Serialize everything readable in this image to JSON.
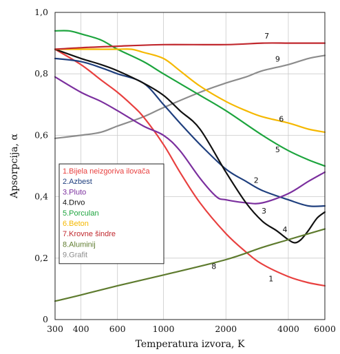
{
  "chart_data": {
    "type": "line",
    "xlabel": "Temperatura izvora, K",
    "ylabel": "Apsorpcija, α",
    "x_scale": "log",
    "xlim": [
      300,
      6000
    ],
    "ylim": [
      0,
      1.0
    ],
    "x_ticks": [
      300,
      400,
      600,
      1000,
      2000,
      4000,
      6000
    ],
    "x_tick_labels": [
      "300",
      "400",
      "600",
      "1000",
      "2000",
      "4000",
      "6000"
    ],
    "y_ticks": [
      0,
      0.2,
      0.4,
      0.6,
      0.8,
      1.0
    ],
    "y_tick_labels": [
      "0",
      "0,2",
      "0,4",
      "0,6",
      "0,8",
      "1,0"
    ],
    "grid": true,
    "legend_position": "center-left",
    "series": [
      {
        "name": "1.Bijela neizgoriva ilovača",
        "label": "1",
        "color": "#e8403f",
        "x": [
          300,
          400,
          500,
          600,
          700,
          800,
          1000,
          1200,
          1500,
          2000,
          2500,
          3000,
          4000,
          5000,
          6000
        ],
        "y": [
          0.88,
          0.83,
          0.78,
          0.74,
          0.7,
          0.66,
          0.57,
          0.48,
          0.38,
          0.28,
          0.22,
          0.18,
          0.14,
          0.12,
          0.11
        ]
      },
      {
        "name": "2.Azbest",
        "label": "2",
        "color": "#1f3f7e",
        "x": [
          300,
          400,
          500,
          600,
          800,
          1000,
          1200,
          1500,
          2000,
          2500,
          3000,
          4000,
          5000,
          6000
        ],
        "y": [
          0.85,
          0.84,
          0.82,
          0.8,
          0.77,
          0.7,
          0.64,
          0.57,
          0.49,
          0.45,
          0.42,
          0.39,
          0.37,
          0.37
        ]
      },
      {
        "name": "3.Pluto",
        "label": "3",
        "color": "#7b2f9e",
        "x": [
          300,
          400,
          500,
          600,
          800,
          1000,
          1200,
          1500,
          1800,
          2000,
          2500,
          3000,
          4000,
          5000,
          6000
        ],
        "y": [
          0.79,
          0.74,
          0.71,
          0.68,
          0.63,
          0.6,
          0.55,
          0.46,
          0.4,
          0.39,
          0.38,
          0.38,
          0.41,
          0.45,
          0.48
        ]
      },
      {
        "name": "4.Drvo",
        "label": "4",
        "color": "#111111",
        "x": [
          300,
          400,
          500,
          600,
          800,
          1000,
          1200,
          1500,
          2000,
          2500,
          3000,
          3500,
          4000,
          4300,
          4600,
          5000,
          5500,
          6000
        ],
        "y": [
          0.88,
          0.85,
          0.83,
          0.81,
          0.77,
          0.73,
          0.68,
          0.62,
          0.48,
          0.38,
          0.32,
          0.29,
          0.26,
          0.25,
          0.26,
          0.29,
          0.33,
          0.35
        ]
      },
      {
        "name": "5.Porculan",
        "label": "5",
        "color": "#1ca43d",
        "x": [
          300,
          350,
          400,
          500,
          600,
          800,
          1000,
          1500,
          2000,
          3000,
          4000,
          5000,
          6000
        ],
        "y": [
          0.94,
          0.94,
          0.93,
          0.91,
          0.88,
          0.84,
          0.8,
          0.73,
          0.68,
          0.6,
          0.55,
          0.52,
          0.5
        ]
      },
      {
        "name": "6.Beton",
        "label": "6",
        "color": "#f5b800",
        "x": [
          300,
          400,
          500,
          600,
          700,
          800,
          1000,
          1200,
          1500,
          2000,
          2500,
          3000,
          4000,
          5000,
          6000
        ],
        "y": [
          0.88,
          0.88,
          0.88,
          0.88,
          0.88,
          0.87,
          0.85,
          0.81,
          0.76,
          0.71,
          0.68,
          0.66,
          0.64,
          0.62,
          0.61
        ]
      },
      {
        "name": "7.Krovne šindre",
        "label": "7",
        "color": "#c0272d",
        "x": [
          300,
          400,
          600,
          1000,
          2000,
          3000,
          4000,
          5000,
          6000
        ],
        "y": [
          0.88,
          0.885,
          0.89,
          0.895,
          0.895,
          0.9,
          0.9,
          0.9,
          0.9
        ]
      },
      {
        "name": "8.Aluminij",
        "label": "8",
        "color": "#5e7b2e",
        "x": [
          300,
          400,
          600,
          1000,
          2000,
          3000,
          4000,
          6000
        ],
        "y": [
          0.06,
          0.08,
          0.11,
          0.145,
          0.195,
          0.235,
          0.26,
          0.295
        ]
      },
      {
        "name": "9.Grafit",
        "label": "9",
        "color": "#8c8c8c",
        "x": [
          300,
          400,
          500,
          600,
          800,
          1000,
          1500,
          2000,
          2500,
          3000,
          4000,
          5000,
          6000
        ],
        "y": [
          0.59,
          0.6,
          0.61,
          0.63,
          0.66,
          0.69,
          0.74,
          0.77,
          0.79,
          0.81,
          0.83,
          0.85,
          0.86
        ]
      }
    ]
  }
}
